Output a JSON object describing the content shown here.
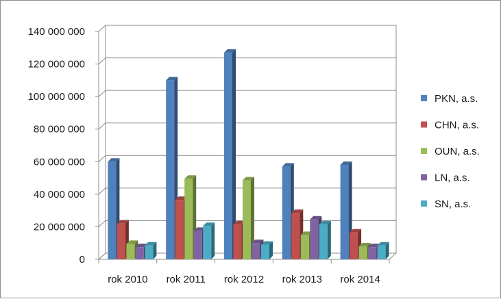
{
  "chart_data": {
    "type": "bar",
    "categories": [
      "rok 2010",
      "rok 2011",
      "rok 2012",
      "rok 2013",
      "rok 2014"
    ],
    "series": [
      {
        "name": "PKN, a.s.",
        "color": "#4F81BD",
        "values": [
          60000000,
          110000000,
          127000000,
          57000000,
          58000000
        ]
      },
      {
        "name": "CHN, a.s.",
        "color": "#C0504D",
        "values": [
          22000000,
          36500000,
          21500000,
          28500000,
          16500000
        ]
      },
      {
        "name": "OUN, a.s.",
        "color": "#9BBB59",
        "values": [
          9500000,
          49500000,
          48500000,
          15000000,
          8000000
        ]
      },
      {
        "name": "LN, a.s.",
        "color": "#8064A2",
        "values": [
          7500000,
          17500000,
          10000000,
          24500000,
          7500000
        ]
      },
      {
        "name": "SN, a.s.",
        "color": "#4BACC6",
        "values": [
          8500000,
          20500000,
          9000000,
          21500000,
          8500000
        ]
      }
    ],
    "yticks": [
      "0",
      "20 000 000",
      "40 000 000",
      "60 000 000",
      "80 000 000",
      "100 000 000",
      "120 000 000",
      "140 000 000"
    ],
    "ylim": [
      0,
      140000000
    ],
    "grid": true,
    "legend": "right",
    "style": "3d-clustered-column"
  }
}
